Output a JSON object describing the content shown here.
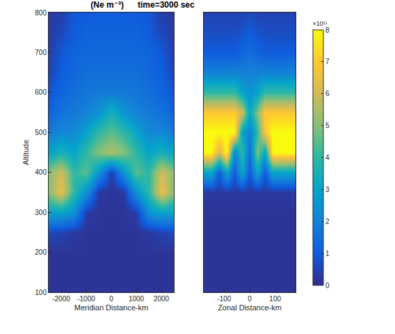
{
  "chart_data": [
    {
      "type": "heatmap",
      "title": "(Ne m⁻³)      time=3000 sec",
      "x_label": "Meridian Distance-km",
      "y_label": "Altitude",
      "x": [
        -2500,
        -2000,
        -1500,
        -1000,
        -500,
        0,
        500,
        1000,
        1500,
        2000,
        2500
      ],
      "y": [
        100,
        150,
        200,
        250,
        300,
        350,
        400,
        450,
        500,
        550,
        600,
        650,
        700,
        750,
        800
      ],
      "cells": [
        [
          0.2,
          0.2,
          0.2,
          0.2,
          0.2,
          0.2,
          0.2,
          0.2,
          0.2,
          0.2,
          0.2
        ],
        [
          0.2,
          0.2,
          0.2,
          0.2,
          0.2,
          0.2,
          0.2,
          0.2,
          0.2,
          0.2,
          0.2
        ],
        [
          0.2,
          0.2,
          0.2,
          0.2,
          0.2,
          0.2,
          0.2,
          0.2,
          0.2,
          0.2,
          0.2
        ],
        [
          0.6,
          0.5,
          0.3,
          0.2,
          0.2,
          0.2,
          0.2,
          0.2,
          0.3,
          0.5,
          0.6
        ],
        [
          3,
          3,
          2.5,
          0.4,
          0.2,
          0.2,
          0.2,
          0.4,
          2.5,
          3,
          3
        ],
        [
          5,
          6.5,
          4,
          2.5,
          0.3,
          0.2,
          0.3,
          2.5,
          4,
          6.5,
          5
        ],
        [
          5,
          6,
          4,
          4.5,
          2.5,
          0.4,
          2.5,
          4.5,
          4,
          6,
          5
        ],
        [
          3,
          3.5,
          3,
          4,
          5,
          5.5,
          5,
          4,
          3,
          3.5,
          3
        ],
        [
          1.8,
          2.2,
          2.2,
          3,
          4,
          4.5,
          4,
          3,
          2.2,
          2.2,
          1.8
        ],
        [
          1.2,
          1.6,
          1.8,
          2,
          2.5,
          3.5,
          2.5,
          2,
          1.8,
          1.6,
          1.2
        ],
        [
          0.8,
          1.3,
          1.5,
          1.7,
          1.8,
          1.8,
          1.8,
          1.7,
          1.5,
          1.3,
          0.8
        ],
        [
          0.5,
          1.1,
          1.3,
          1.5,
          1.5,
          1.5,
          1.5,
          1.5,
          1.3,
          1.1,
          0.5
        ],
        [
          0.4,
          0.9,
          1.2,
          1.3,
          1.3,
          1.3,
          1.3,
          1.3,
          1.2,
          0.9,
          0.4
        ],
        [
          0.3,
          0.6,
          1.0,
          1.2,
          1.2,
          1.2,
          1.2,
          1.2,
          1.0,
          0.6,
          0.3
        ],
        [
          0.3,
          0.4,
          0.9,
          1.0,
          1.0,
          1.0,
          1.0,
          1.0,
          0.9,
          0.4,
          0.3
        ]
      ],
      "xlim": [
        -2500,
        2500
      ],
      "ylim": [
        100,
        800
      ],
      "xticks": [
        -2000,
        -1000,
        0,
        1000,
        2000
      ],
      "yticks": [
        100,
        200,
        300,
        400,
        500,
        600,
        700,
        800
      ]
    },
    {
      "type": "heatmap",
      "x_label": "Zonal Distance-km",
      "x": [
        -180,
        -150,
        -120,
        -90,
        -60,
        -30,
        0,
        30,
        60,
        90,
        120,
        150,
        180
      ],
      "y": [
        100,
        150,
        200,
        250,
        300,
        350,
        400,
        450,
        500,
        550,
        600,
        650,
        700,
        750,
        800
      ],
      "cells": [
        [
          0.2,
          0.2,
          0.2,
          0.2,
          0.2,
          0.2,
          0.2,
          0.2,
          0.2,
          0.2,
          0.2,
          0.2,
          0.2
        ],
        [
          0.2,
          0.2,
          0.2,
          0.2,
          0.2,
          0.2,
          0.2,
          0.2,
          0.2,
          0.2,
          0.2,
          0.2,
          0.2
        ],
        [
          0.2,
          0.2,
          0.2,
          0.2,
          0.2,
          0.2,
          0.2,
          0.2,
          0.2,
          0.2,
          0.2,
          0.2,
          0.2
        ],
        [
          0.2,
          0.2,
          0.2,
          0.2,
          0.2,
          0.2,
          0.2,
          0.2,
          0.2,
          0.2,
          0.2,
          0.2,
          0.2
        ],
        [
          0.2,
          0.2,
          0.2,
          0.2,
          0.2,
          0.2,
          0.2,
          0.2,
          0.2,
          0.2,
          0.2,
          0.2,
          0.2
        ],
        [
          0.3,
          0.3,
          0.3,
          0.3,
          0.3,
          0.3,
          0.3,
          0.3,
          0.3,
          0.3,
          0.3,
          0.3,
          0.3
        ],
        [
          3,
          3,
          1,
          3,
          1,
          3,
          1,
          3,
          1,
          3,
          3,
          3,
          3
        ],
        [
          8,
          8,
          6,
          8,
          2,
          4,
          1.5,
          5,
          3,
          8,
          8,
          8,
          8
        ],
        [
          8,
          8,
          8,
          8,
          8,
          3,
          2,
          4,
          7,
          8,
          8,
          8,
          8
        ],
        [
          7,
          7,
          7,
          7,
          7,
          6,
          3,
          5,
          7,
          7,
          7,
          7,
          7
        ],
        [
          4,
          4,
          4,
          4,
          4,
          3,
          2.5,
          3,
          4,
          4,
          4,
          4,
          4
        ],
        [
          2,
          2,
          2,
          2,
          2,
          2,
          2,
          2,
          2,
          2,
          2,
          2,
          2
        ],
        [
          1,
          1,
          1,
          1,
          1,
          1.2,
          1.5,
          1.2,
          1,
          1,
          1,
          1,
          1
        ],
        [
          0.7,
          0.7,
          0.7,
          0.7,
          0.7,
          0.8,
          1,
          0.8,
          0.7,
          0.7,
          0.7,
          0.7,
          0.7
        ],
        [
          0.5,
          0.5,
          0.5,
          0.5,
          0.5,
          0.5,
          0.6,
          0.5,
          0.5,
          0.5,
          0.5,
          0.5,
          0.5
        ]
      ],
      "xlim": [
        -180,
        180
      ],
      "ylim": [
        100,
        800
      ],
      "xticks": [
        -100,
        0,
        100
      ],
      "tick_labels": "x",
      "colorbar": {
        "title": "×10¹¹",
        "range": [
          0,
          8
        ],
        "ticks": [
          0,
          1,
          2,
          3,
          4,
          5,
          6,
          7,
          8
        ]
      }
    }
  ]
}
